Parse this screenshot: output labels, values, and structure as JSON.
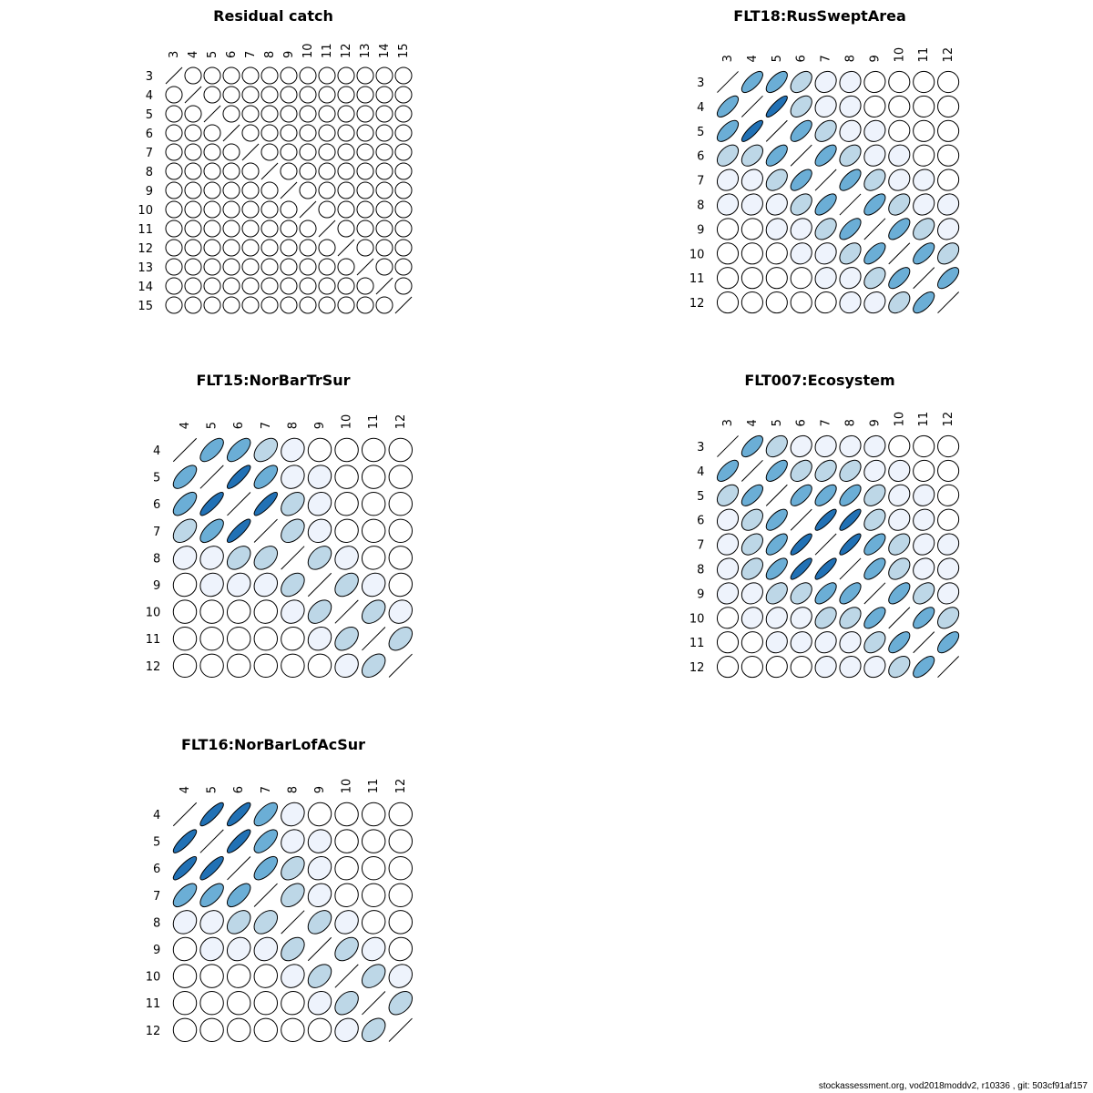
{
  "colors": {
    "stroke": "#000000",
    "fill_scale": [
      "#ffffff",
      "#eef3fc",
      "#bdd7e7",
      "#6baed6",
      "#2171b5"
    ]
  },
  "footer": "stockassessment.org, vod2018moddv2, r10336 , git: 503cf91af157",
  "chart_data": [
    {
      "type": "heatmap",
      "title": "Residual catch",
      "ages": [
        3,
        4,
        5,
        6,
        7,
        8,
        9,
        10,
        11,
        12,
        13,
        14,
        15
      ],
      "encoding": "ellipse correlation matrix, diagonal drawn as line",
      "matrix": [
        [
          1,
          0,
          0,
          0,
          0,
          0,
          0,
          0,
          0,
          0,
          0,
          0,
          0
        ],
        [
          0,
          1,
          0,
          0,
          0,
          0,
          0,
          0,
          0,
          0,
          0,
          0,
          0
        ],
        [
          0,
          0,
          1,
          0,
          0,
          0,
          0,
          0,
          0,
          0,
          0,
          0,
          0
        ],
        [
          0,
          0,
          0,
          1,
          0,
          0,
          0,
          0,
          0,
          0,
          0,
          0,
          0
        ],
        [
          0,
          0,
          0,
          0,
          1,
          0,
          0,
          0,
          0,
          0,
          0,
          0,
          0
        ],
        [
          0,
          0,
          0,
          0,
          0,
          1,
          0,
          0,
          0,
          0,
          0,
          0,
          0
        ],
        [
          0,
          0,
          0,
          0,
          0,
          0,
          1,
          0,
          0,
          0,
          0,
          0,
          0
        ],
        [
          0,
          0,
          0,
          0,
          0,
          0,
          0,
          1,
          0,
          0,
          0,
          0,
          0
        ],
        [
          0,
          0,
          0,
          0,
          0,
          0,
          0,
          0,
          1,
          0,
          0,
          0,
          0
        ],
        [
          0,
          0,
          0,
          0,
          0,
          0,
          0,
          0,
          0,
          1,
          0,
          0,
          0
        ],
        [
          0,
          0,
          0,
          0,
          0,
          0,
          0,
          0,
          0,
          0,
          1,
          0,
          0
        ],
        [
          0,
          0,
          0,
          0,
          0,
          0,
          0,
          0,
          0,
          0,
          0,
          1,
          0
        ],
        [
          0,
          0,
          0,
          0,
          0,
          0,
          0,
          0,
          0,
          0,
          0,
          0,
          1
        ]
      ]
    },
    {
      "type": "heatmap",
      "title": "FLT18:RusSweptArea",
      "ages": [
        3,
        4,
        5,
        6,
        7,
        8,
        9,
        10,
        11,
        12
      ],
      "encoding": "ellipse correlation matrix, diagonal drawn as line",
      "matrix": [
        [
          1.0,
          0.7,
          0.65,
          0.45,
          0.15,
          0.1,
          0.05,
          0.0,
          0.0,
          0.0
        ],
        [
          0.7,
          1.0,
          0.85,
          0.45,
          0.15,
          0.1,
          0.05,
          0.0,
          0.0,
          0.0
        ],
        [
          0.65,
          0.85,
          1.0,
          0.65,
          0.4,
          0.15,
          0.1,
          0.05,
          0.0,
          0.0
        ],
        [
          0.45,
          0.45,
          0.65,
          1.0,
          0.65,
          0.4,
          0.15,
          0.1,
          0.05,
          0.0
        ],
        [
          0.15,
          0.15,
          0.4,
          0.65,
          1.0,
          0.65,
          0.4,
          0.15,
          0.1,
          0.05
        ],
        [
          0.1,
          0.1,
          0.15,
          0.4,
          0.65,
          1.0,
          0.65,
          0.4,
          0.15,
          0.1
        ],
        [
          0.05,
          0.05,
          0.1,
          0.15,
          0.4,
          0.65,
          1.0,
          0.65,
          0.4,
          0.15
        ],
        [
          0.0,
          0.0,
          0.05,
          0.1,
          0.15,
          0.4,
          0.65,
          1.0,
          0.65,
          0.4
        ],
        [
          0.0,
          0.0,
          0.0,
          0.05,
          0.1,
          0.15,
          0.4,
          0.65,
          1.0,
          0.65
        ],
        [
          0.0,
          0.0,
          0.0,
          0.0,
          0.05,
          0.1,
          0.15,
          0.4,
          0.65,
          1.0
        ]
      ]
    },
    {
      "type": "heatmap",
      "title": "FLT15:NorBarTrSur",
      "ages": [
        4,
        5,
        6,
        7,
        8,
        9,
        10,
        11,
        12
      ],
      "encoding": "ellipse correlation matrix, diagonal drawn as line",
      "matrix": [
        [
          1.0,
          0.65,
          0.65,
          0.45,
          0.15,
          0.05,
          0.0,
          0.0,
          0.0
        ],
        [
          0.65,
          1.0,
          0.85,
          0.65,
          0.15,
          0.1,
          0.0,
          0.0,
          0.0
        ],
        [
          0.65,
          0.85,
          1.0,
          0.85,
          0.4,
          0.15,
          0.05,
          0.0,
          0.0
        ],
        [
          0.45,
          0.65,
          0.85,
          1.0,
          0.4,
          0.15,
          0.05,
          0.0,
          0.0
        ],
        [
          0.15,
          0.15,
          0.4,
          0.4,
          1.0,
          0.4,
          0.15,
          0.05,
          0.0
        ],
        [
          0.05,
          0.1,
          0.15,
          0.15,
          0.4,
          1.0,
          0.4,
          0.15,
          0.05
        ],
        [
          0.0,
          0.0,
          0.05,
          0.05,
          0.15,
          0.4,
          1.0,
          0.4,
          0.15
        ],
        [
          0.0,
          0.0,
          0.0,
          0.0,
          0.05,
          0.15,
          0.4,
          1.0,
          0.45
        ],
        [
          0.0,
          0.0,
          0.0,
          0.0,
          0.0,
          0.05,
          0.15,
          0.45,
          1.0
        ]
      ]
    },
    {
      "type": "heatmap",
      "title": "FLT007:Ecosystem",
      "ages": [
        3,
        4,
        5,
        6,
        7,
        8,
        9,
        10,
        11,
        12
      ],
      "encoding": "ellipse correlation matrix, diagonal drawn as line",
      "matrix": [
        [
          1.0,
          0.65,
          0.4,
          0.15,
          0.1,
          0.1,
          0.1,
          0.05,
          0.0,
          0.0
        ],
        [
          0.65,
          1.0,
          0.65,
          0.4,
          0.4,
          0.4,
          0.15,
          0.1,
          0.05,
          0.0
        ],
        [
          0.4,
          0.65,
          1.0,
          0.65,
          0.65,
          0.65,
          0.4,
          0.15,
          0.1,
          0.05
        ],
        [
          0.15,
          0.4,
          0.65,
          1.0,
          0.85,
          0.85,
          0.4,
          0.15,
          0.1,
          0.05
        ],
        [
          0.1,
          0.4,
          0.65,
          0.85,
          1.0,
          0.85,
          0.65,
          0.4,
          0.15,
          0.1
        ],
        [
          0.1,
          0.4,
          0.65,
          0.85,
          0.85,
          1.0,
          0.65,
          0.4,
          0.15,
          0.1
        ],
        [
          0.1,
          0.15,
          0.4,
          0.4,
          0.65,
          0.65,
          1.0,
          0.65,
          0.4,
          0.15
        ],
        [
          0.05,
          0.1,
          0.15,
          0.15,
          0.4,
          0.4,
          0.65,
          1.0,
          0.65,
          0.4
        ],
        [
          0.0,
          0.05,
          0.1,
          0.1,
          0.15,
          0.15,
          0.4,
          0.65,
          1.0,
          0.65
        ],
        [
          0.0,
          0.0,
          0.05,
          0.05,
          0.1,
          0.1,
          0.15,
          0.4,
          0.65,
          1.0
        ]
      ]
    },
    {
      "type": "heatmap",
      "title": "FLT16:NorBarLofAcSur",
      "ages": [
        4,
        5,
        6,
        7,
        8,
        9,
        10,
        11,
        12
      ],
      "encoding": "ellipse correlation matrix, diagonal drawn as line",
      "matrix": [
        [
          1.0,
          0.85,
          0.85,
          0.65,
          0.15,
          0.05,
          0.0,
          0.0,
          0.0
        ],
        [
          0.85,
          1.0,
          0.85,
          0.65,
          0.15,
          0.1,
          0.0,
          0.0,
          0.0
        ],
        [
          0.85,
          0.85,
          1.0,
          0.65,
          0.4,
          0.15,
          0.05,
          0.0,
          0.0
        ],
        [
          0.65,
          0.65,
          0.65,
          1.0,
          0.4,
          0.15,
          0.05,
          0.0,
          0.0
        ],
        [
          0.15,
          0.15,
          0.4,
          0.4,
          1.0,
          0.4,
          0.15,
          0.05,
          0.0
        ],
        [
          0.05,
          0.1,
          0.15,
          0.15,
          0.4,
          1.0,
          0.4,
          0.15,
          0.05
        ],
        [
          0.0,
          0.0,
          0.05,
          0.05,
          0.15,
          0.4,
          1.0,
          0.4,
          0.15
        ],
        [
          0.0,
          0.0,
          0.0,
          0.0,
          0.05,
          0.15,
          0.4,
          1.0,
          0.4
        ],
        [
          0.0,
          0.0,
          0.0,
          0.0,
          0.0,
          0.05,
          0.15,
          0.4,
          1.0
        ]
      ]
    }
  ]
}
